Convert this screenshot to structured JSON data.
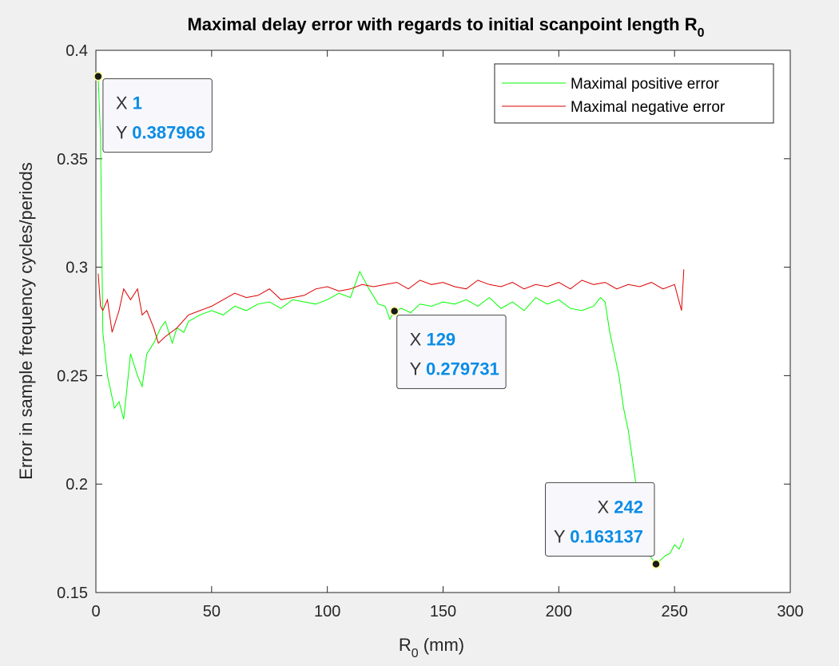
{
  "chart_data": {
    "type": "line",
    "title": "Maximal delay error with regards to initial scanpoint length R",
    "title_subscript": "0",
    "xlabel": "R",
    "xlabel_subscript": "0",
    "xlabel_unit": " (mm)",
    "ylabel": "Error in sample frequency cycles/periods",
    "xlim": [
      0,
      300
    ],
    "ylim": [
      0.15,
      0.4
    ],
    "xticks": [
      "0",
      "50",
      "100",
      "150",
      "200",
      "250",
      "300"
    ],
    "yticks": [
      "0.15",
      "0.2",
      "0.25",
      "0.3",
      "0.35",
      "0.4"
    ],
    "grid": false,
    "legend_position": "top-right",
    "series": [
      {
        "name": "Maximal positive error",
        "color": "#00ff00",
        "x": [
          1,
          2,
          3,
          5,
          8,
          10,
          12,
          15,
          18,
          20,
          22,
          25,
          28,
          30,
          33,
          35,
          38,
          40,
          45,
          50,
          55,
          60,
          65,
          70,
          75,
          80,
          85,
          90,
          95,
          100,
          105,
          110,
          114,
          118,
          122,
          125,
          127,
          129,
          132,
          136,
          140,
          145,
          150,
          155,
          160,
          165,
          170,
          175,
          180,
          185,
          190,
          195,
          200,
          205,
          210,
          215,
          218,
          220,
          222,
          224,
          226,
          228,
          230,
          232,
          234,
          236,
          238,
          240,
          242,
          244,
          246,
          248,
          250,
          252,
          254
        ],
        "y": [
          0.388,
          0.36,
          0.27,
          0.25,
          0.235,
          0.238,
          0.23,
          0.26,
          0.25,
          0.245,
          0.26,
          0.265,
          0.272,
          0.275,
          0.265,
          0.272,
          0.27,
          0.275,
          0.278,
          0.28,
          0.278,
          0.282,
          0.28,
          0.283,
          0.284,
          0.281,
          0.285,
          0.284,
          0.283,
          0.285,
          0.288,
          0.286,
          0.298,
          0.29,
          0.283,
          0.282,
          0.276,
          0.2797,
          0.281,
          0.279,
          0.283,
          0.282,
          0.284,
          0.283,
          0.285,
          0.282,
          0.286,
          0.281,
          0.284,
          0.28,
          0.286,
          0.283,
          0.285,
          0.281,
          0.28,
          0.282,
          0.286,
          0.284,
          0.27,
          0.26,
          0.25,
          0.235,
          0.225,
          0.21,
          0.195,
          0.18,
          0.17,
          0.166,
          0.1631,
          0.165,
          0.167,
          0.168,
          0.172,
          0.17,
          0.175
        ]
      },
      {
        "name": "Maximal negative error",
        "color": "#dd0000",
        "x": [
          1,
          2,
          3,
          5,
          7,
          10,
          12,
          15,
          18,
          20,
          22,
          25,
          27,
          30,
          35,
          40,
          45,
          50,
          55,
          60,
          65,
          70,
          75,
          80,
          85,
          90,
          95,
          100,
          105,
          110,
          115,
          120,
          125,
          130,
          135,
          140,
          145,
          150,
          155,
          160,
          165,
          170,
          175,
          180,
          185,
          190,
          195,
          200,
          205,
          210,
          215,
          220,
          225,
          230,
          235,
          240,
          245,
          250,
          253,
          254
        ],
        "y": [
          0.297,
          0.282,
          0.28,
          0.285,
          0.27,
          0.28,
          0.29,
          0.285,
          0.29,
          0.278,
          0.28,
          0.272,
          0.265,
          0.268,
          0.272,
          0.278,
          0.28,
          0.282,
          0.285,
          0.288,
          0.286,
          0.287,
          0.29,
          0.285,
          0.286,
          0.287,
          0.29,
          0.291,
          0.289,
          0.29,
          0.292,
          0.291,
          0.292,
          0.293,
          0.29,
          0.294,
          0.292,
          0.293,
          0.291,
          0.29,
          0.294,
          0.292,
          0.291,
          0.293,
          0.29,
          0.292,
          0.291,
          0.293,
          0.29,
          0.294,
          0.292,
          0.293,
          0.29,
          0.292,
          0.291,
          0.293,
          0.29,
          0.292,
          0.28,
          0.299
        ]
      }
    ],
    "annotations": [
      {
        "x": 1,
        "y": 0.387966,
        "x_label": "X",
        "x_value": "1",
        "y_label": "Y",
        "y_value": "0.387966"
      },
      {
        "x": 129,
        "y": 0.279731,
        "x_label": "X",
        "x_value": "129",
        "y_label": "Y",
        "y_value": "0.279731"
      },
      {
        "x": 242,
        "y": 0.163137,
        "x_label": "X",
        "x_value": "242",
        "y_label": "Y",
        "y_value": "0.163137"
      }
    ]
  }
}
